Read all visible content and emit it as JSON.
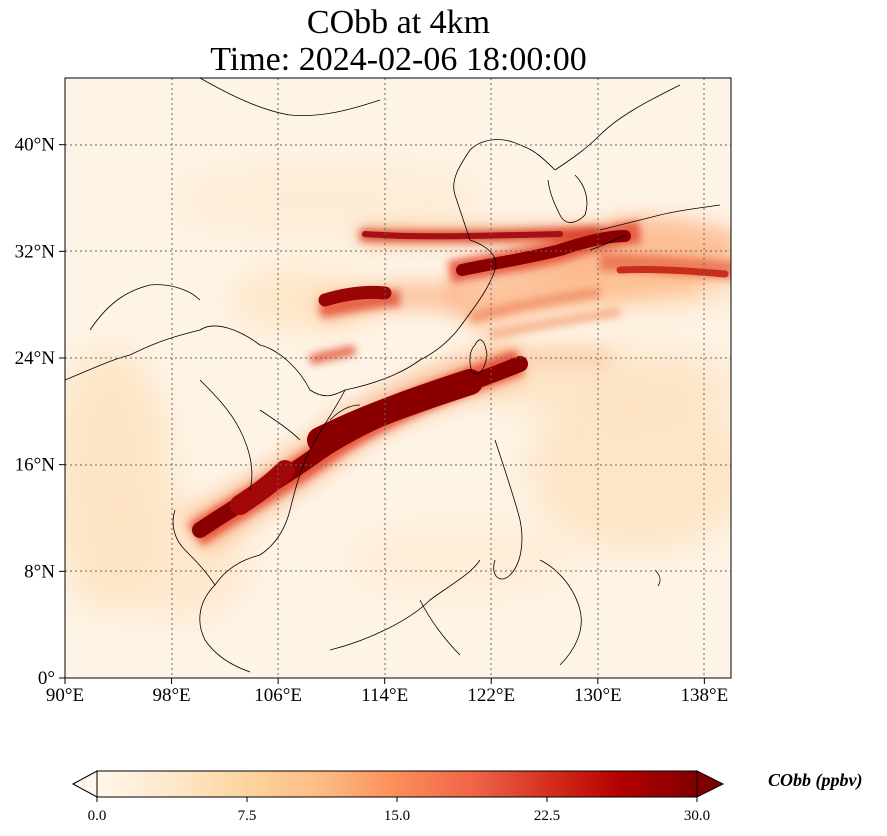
{
  "title": {
    "line1": "CObb at 4km",
    "line2": "Time: 2024-02-06 18:00:00"
  },
  "map": {
    "lon_range": [
      90,
      140
    ],
    "lat_range": [
      0,
      45
    ],
    "x_ticks": [
      "90°E",
      "98°E",
      "106°E",
      "114°E",
      "122°E",
      "130°E",
      "138°E"
    ],
    "x_tick_values": [
      90,
      98,
      106,
      114,
      122,
      130,
      138
    ],
    "y_ticks": [
      "0°",
      "8°N",
      "16°N",
      "24°N",
      "32°N",
      "40°N"
    ],
    "y_tick_values": [
      0,
      8,
      16,
      24,
      32,
      40
    ],
    "plumes": [
      {
        "name": "main-plume",
        "path_lonlat": [
          [
            100.5,
            11
          ],
          [
            104,
            14
          ],
          [
            110,
            18
          ],
          [
            116,
            20.5
          ],
          [
            122,
            23
          ]
        ]
      },
      {
        "name": "east-china-sea-plume",
        "path_lonlat": [
          [
            118,
            30
          ],
          [
            124,
            31.5
          ],
          [
            128,
            33
          ],
          [
            130,
            33.5
          ]
        ]
      },
      {
        "name": "northern-band",
        "path_lonlat": [
          [
            112,
            33.5
          ],
          [
            120,
            33.5
          ],
          [
            128,
            33.5
          ]
        ]
      },
      {
        "name": "south-china-blob",
        "path_lonlat": [
          [
            110,
            28.3
          ],
          [
            113,
            29
          ]
        ]
      }
    ]
  },
  "colorbar": {
    "label": "CObb (ppbv)",
    "ticks": [
      "0.0",
      "7.5",
      "15.0",
      "22.5",
      "30.0"
    ],
    "tick_values": [
      0,
      7.5,
      15,
      22.5,
      30
    ],
    "min": 0,
    "max": 30,
    "colormap": "OrRd",
    "colors": [
      "#fff7ec",
      "#fee8c8",
      "#fdd49e",
      "#fdbb84",
      "#fc8d59",
      "#ef6548",
      "#d7301f",
      "#b30000",
      "#7f0000"
    ]
  }
}
